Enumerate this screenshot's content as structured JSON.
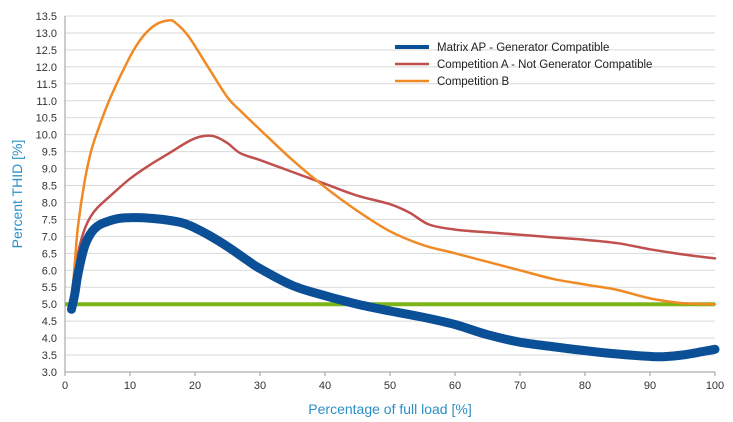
{
  "chart_data": {
    "type": "line",
    "xlabel": "Percentage of full load [%]",
    "ylabel": "Percent THID [%]",
    "xlim": [
      0,
      100
    ],
    "ylim": [
      3.0,
      13.5
    ],
    "x_ticks": [
      "0",
      "10",
      "20",
      "30",
      "40",
      "50",
      "60",
      "70",
      "80",
      "90",
      "100"
    ],
    "y_ticks": [
      "3.0",
      "3.5",
      "4.0",
      "4.5",
      "5.0",
      "5.5",
      "6.0",
      "6.5",
      "7.0",
      "7.5",
      "8.0",
      "8.5",
      "9.0",
      "9.5",
      "10.0",
      "10.5",
      "11.0",
      "11.5",
      "12.0",
      "12.5",
      "13.0",
      "13.5"
    ],
    "grid": "horizontal",
    "legend_position": "top-right",
    "reference_line": {
      "y": 5.0,
      "color": "#7cb518"
    },
    "series": [
      {
        "name": "Matrix AP - Generator Compatible",
        "color": "#0b4f96",
        "style": "thick",
        "x": [
          1,
          1.5,
          2,
          3,
          4,
          5,
          6,
          8,
          10,
          12,
          15,
          18,
          20,
          22,
          25,
          28,
          30,
          35,
          40,
          45,
          50,
          55,
          60,
          65,
          70,
          75,
          80,
          85,
          90,
          92,
          95,
          98,
          100
        ],
        "y": [
          4.85,
          5.3,
          5.9,
          6.7,
          7.1,
          7.3,
          7.4,
          7.52,
          7.55,
          7.55,
          7.5,
          7.4,
          7.25,
          7.05,
          6.7,
          6.3,
          6.05,
          5.55,
          5.25,
          5.0,
          4.8,
          4.62,
          4.4,
          4.1,
          3.88,
          3.75,
          3.63,
          3.53,
          3.46,
          3.45,
          3.5,
          3.6,
          3.67
        ]
      },
      {
        "name": "Competition A - Not Generator Compatible",
        "color": "#c0504d",
        "style": "thin",
        "x": [
          1,
          1.5,
          2,
          3,
          4,
          5,
          7,
          10,
          13,
          16,
          19,
          21,
          23,
          25,
          27,
          30,
          35,
          40,
          45,
          50,
          53,
          56,
          60,
          65,
          70,
          75,
          80,
          85,
          90,
          95,
          100
        ],
        "y": [
          5.0,
          5.8,
          6.5,
          7.2,
          7.6,
          7.85,
          8.2,
          8.7,
          9.1,
          9.45,
          9.8,
          9.95,
          9.95,
          9.75,
          9.45,
          9.25,
          8.9,
          8.55,
          8.2,
          7.95,
          7.7,
          7.35,
          7.2,
          7.12,
          7.05,
          6.97,
          6.9,
          6.8,
          6.62,
          6.47,
          6.35
        ]
      },
      {
        "name": "Competition B",
        "color": "#f08a24",
        "style": "thin",
        "x": [
          1,
          1.5,
          2,
          3,
          4,
          5,
          7,
          10,
          12,
          14,
          16,
          17,
          19,
          22,
          25,
          27,
          30,
          35,
          40,
          45,
          50,
          55,
          60,
          65,
          70,
          75,
          80,
          85,
          90,
          95,
          100
        ],
        "y": [
          5.0,
          6.2,
          7.3,
          8.6,
          9.5,
          10.1,
          11.1,
          12.3,
          12.9,
          13.25,
          13.37,
          13.3,
          12.9,
          12.0,
          11.1,
          10.7,
          10.15,
          9.25,
          8.45,
          7.75,
          7.15,
          6.75,
          6.5,
          6.25,
          6.0,
          5.75,
          5.58,
          5.42,
          5.17,
          5.03,
          5.0
        ]
      }
    ]
  }
}
